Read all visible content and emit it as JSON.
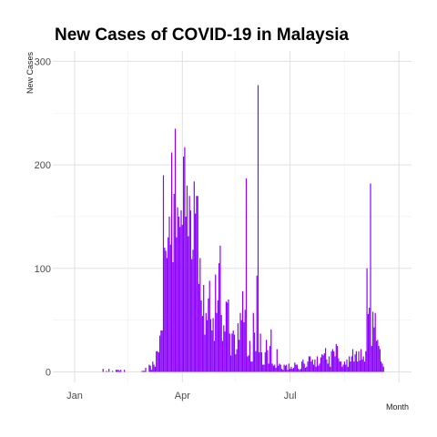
{
  "chart_data": {
    "type": "bar",
    "title": "New Cases of COVID-19 in Malaysia",
    "xlabel": "Month",
    "ylabel": "New Cases",
    "x_ticks": [
      "Jan",
      "Apr",
      "Jul"
    ],
    "y_ticks": [
      "0",
      "100",
      "200",
      "300"
    ],
    "ylim": [
      0,
      310
    ],
    "grid": true,
    "bar_color": "#8B00FF",
    "series": [
      {
        "x": [
          "2020-01-25",
          "2020-01-26",
          "2020-01-27",
          "2020-01-28",
          "2020-01-29",
          "2020-01-30",
          "2020-01-31",
          "2020-02-01",
          "2020-02-02",
          "2020-02-03",
          "2020-02-04",
          "2020-02-05",
          "2020-02-06",
          "2020-02-07",
          "2020-02-08",
          "2020-02-09",
          "2020-02-10",
          "2020-02-11",
          "2020-02-12",
          "2020-02-27",
          "2020-02-28",
          "2020-02-29",
          "2020-03-01",
          "2020-03-02",
          "2020-03-03",
          "2020-03-04",
          "2020-03-05",
          "2020-03-06",
          "2020-03-07",
          "2020-03-08",
          "2020-03-09",
          "2020-03-10",
          "2020-03-11",
          "2020-03-12",
          "2020-03-13",
          "2020-03-14",
          "2020-03-15",
          "2020-03-16",
          "2020-03-17",
          "2020-03-18",
          "2020-03-19",
          "2020-03-20",
          "2020-03-21",
          "2020-03-22",
          "2020-03-23",
          "2020-03-24",
          "2020-03-25",
          "2020-03-26",
          "2020-03-27",
          "2020-03-28",
          "2020-03-29",
          "2020-03-30",
          "2020-03-31",
          "2020-04-01",
          "2020-04-02",
          "2020-04-03",
          "2020-04-04",
          "2020-04-05",
          "2020-04-06",
          "2020-04-07",
          "2020-04-08",
          "2020-04-09",
          "2020-04-10",
          "2020-04-11",
          "2020-04-12",
          "2020-04-13",
          "2020-04-14",
          "2020-04-15",
          "2020-04-16",
          "2020-04-17",
          "2020-04-18",
          "2020-04-19",
          "2020-04-20",
          "2020-04-21",
          "2020-04-22",
          "2020-04-23",
          "2020-04-24",
          "2020-04-25",
          "2020-04-26",
          "2020-04-27",
          "2020-04-28",
          "2020-04-29",
          "2020-04-30",
          "2020-05-01",
          "2020-05-02",
          "2020-05-03",
          "2020-05-04",
          "2020-05-05",
          "2020-05-06",
          "2020-05-07",
          "2020-05-08",
          "2020-05-09",
          "2020-05-10",
          "2020-05-11",
          "2020-05-12",
          "2020-05-13",
          "2020-05-14",
          "2020-05-15",
          "2020-05-16",
          "2020-05-17",
          "2020-05-18",
          "2020-05-19",
          "2020-05-20",
          "2020-05-21",
          "2020-05-22",
          "2020-05-23",
          "2020-05-24",
          "2020-05-25",
          "2020-05-26",
          "2020-05-27",
          "2020-05-28",
          "2020-05-29",
          "2020-05-30",
          "2020-05-31",
          "2020-06-01",
          "2020-06-02",
          "2020-06-03",
          "2020-06-04",
          "2020-06-05",
          "2020-06-06",
          "2020-06-07",
          "2020-06-08",
          "2020-06-09",
          "2020-06-10",
          "2020-06-11",
          "2020-06-12",
          "2020-06-13",
          "2020-06-14",
          "2020-06-15",
          "2020-06-16",
          "2020-06-17",
          "2020-06-18",
          "2020-06-19",
          "2020-06-20",
          "2020-06-21",
          "2020-06-22",
          "2020-06-23",
          "2020-06-24",
          "2020-06-25",
          "2020-06-26",
          "2020-06-27",
          "2020-06-28",
          "2020-06-29",
          "2020-06-30",
          "2020-07-01",
          "2020-07-02",
          "2020-07-03",
          "2020-07-04",
          "2020-07-05",
          "2020-07-06",
          "2020-07-07",
          "2020-07-08",
          "2020-07-09",
          "2020-07-10",
          "2020-07-11",
          "2020-07-12",
          "2020-07-13",
          "2020-07-14",
          "2020-07-15",
          "2020-07-16",
          "2020-07-17",
          "2020-07-18",
          "2020-07-19",
          "2020-07-20",
          "2020-07-21",
          "2020-07-22",
          "2020-07-23",
          "2020-07-24",
          "2020-07-25",
          "2020-07-26",
          "2020-07-27",
          "2020-07-28",
          "2020-07-29",
          "2020-07-30",
          "2020-07-31",
          "2020-08-01",
          "2020-08-02",
          "2020-08-03",
          "2020-08-04",
          "2020-08-05",
          "2020-08-06",
          "2020-08-07",
          "2020-08-08",
          "2020-08-09",
          "2020-08-10",
          "2020-08-11",
          "2020-08-12",
          "2020-08-13",
          "2020-08-14",
          "2020-08-15",
          "2020-08-16",
          "2020-08-17",
          "2020-08-18",
          "2020-08-19",
          "2020-08-20",
          "2020-08-21",
          "2020-08-22",
          "2020-08-23",
          "2020-08-24",
          "2020-08-25",
          "2020-08-26",
          "2020-08-27",
          "2020-08-28",
          "2020-08-29",
          "2020-08-30",
          "2020-08-31",
          "2020-09-01",
          "2020-09-02",
          "2020-09-03",
          "2020-09-04",
          "2020-09-05",
          "2020-09-06",
          "2020-09-07",
          "2020-09-08",
          "2020-09-09",
          "2020-09-10",
          "2020-09-11",
          "2020-09-12",
          "2020-09-13",
          "2020-09-14",
          "2020-09-15",
          "2020-09-16",
          "2020-09-17",
          "2020-09-18"
        ],
        "values": [
          3,
          0,
          0,
          1,
          0,
          3,
          0,
          0,
          1,
          0,
          0,
          2,
          2,
          2,
          1,
          2,
          0,
          0,
          2,
          1,
          1,
          1,
          4,
          0,
          0,
          7,
          6,
          2,
          10,
          7,
          5,
          20,
          20,
          19,
          35,
          40,
          40,
          190,
          120,
          117,
          110,
          130,
          150,
          123,
          212,
          106,
          172,
          235,
          130,
          159,
          150,
          140,
          156,
          142,
          208,
          217,
          150,
          180,
          131,
          170,
          156,
          109,
          118,
          184,
          153,
          170,
          170,
          85,
          110,
          69,
          54,
          84,
          36,
          57,
          50,
          71,
          88,
          51,
          40,
          52,
          30,
          94,
          57,
          69,
          105,
          122,
          55,
          30,
          45,
          39,
          68,
          67,
          70,
          37,
          16,
          37,
          40,
          36,
          17,
          22,
          47,
          31,
          57,
          50,
          78,
          48,
          60,
          187,
          15,
          16,
          30,
          10,
          10,
          57,
          38,
          20,
          93,
          277,
          19,
          37,
          19,
          7,
          7,
          19,
          31,
          21,
          8,
          25,
          41,
          8,
          6,
          7,
          4,
          22,
          6,
          8,
          7,
          3,
          2,
          7,
          6,
          7,
          2,
          8,
          3,
          5,
          3,
          4,
          9,
          7,
          7,
          3,
          2,
          3,
          10,
          12,
          8,
          4,
          5,
          10,
          15,
          15,
          10,
          12,
          7,
          12,
          5,
          15,
          6,
          8,
          14,
          17,
          16,
          18,
          23,
          12,
          8,
          15,
          5,
          20,
          22,
          20,
          15,
          27,
          25,
          13,
          10,
          10,
          5,
          7,
          10,
          7,
          12,
          5,
          15,
          10,
          15,
          22,
          10,
          17,
          20,
          10,
          20,
          11,
          22,
          12,
          15,
          10,
          20,
          100,
          56,
          62,
          182,
          25,
          58,
          43,
          57,
          30,
          31,
          25,
          22,
          10,
          8,
          5
        ]
      }
    ]
  }
}
